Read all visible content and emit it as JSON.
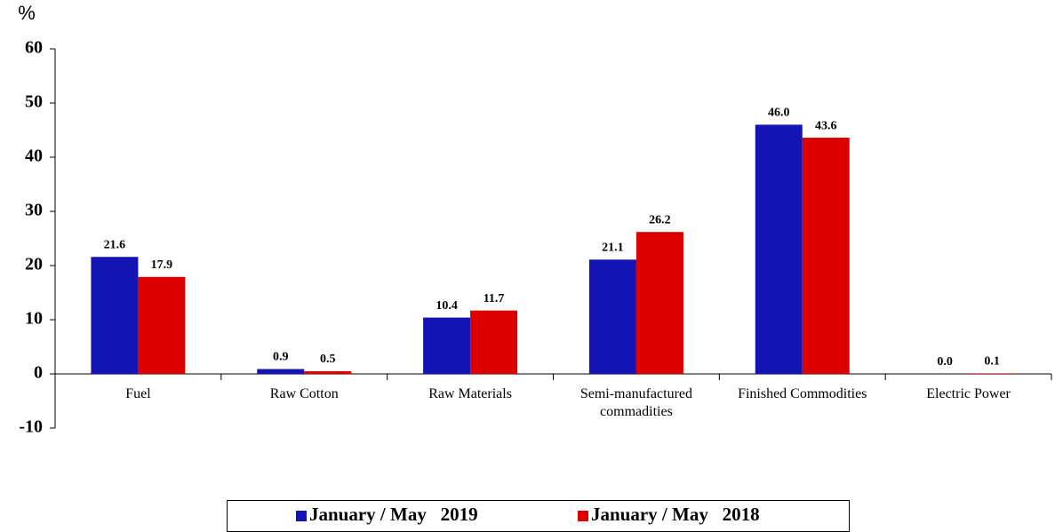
{
  "chart_data": {
    "type": "bar",
    "y_label": "%",
    "categories": [
      "Fuel",
      "Raw Cotton",
      "Raw Materials",
      "Semi-manufactured commadities",
      "Finished Commodities",
      "Electric Power"
    ],
    "series": [
      {
        "name": "January / May   2019",
        "color": "#1414b4",
        "values": [
          21.6,
          0.9,
          10.4,
          21.1,
          46.0,
          0.0
        ],
        "value_labels": [
          "21.6",
          "0.9",
          "10.4",
          "21.1",
          "46.0",
          "0.0"
        ]
      },
      {
        "name": "January / May   2018",
        "color": "#dc0000",
        "values": [
          17.9,
          0.5,
          11.7,
          26.2,
          43.6,
          0.1
        ],
        "value_labels": [
          "17.9",
          "0.5",
          "11.7",
          "26.2",
          "43.6",
          "0.1"
        ]
      }
    ],
    "ylim": [
      -10,
      60
    ],
    "yticks": [
      -10,
      0,
      10,
      20,
      30,
      40,
      50,
      60
    ],
    "legend": "bottom"
  }
}
